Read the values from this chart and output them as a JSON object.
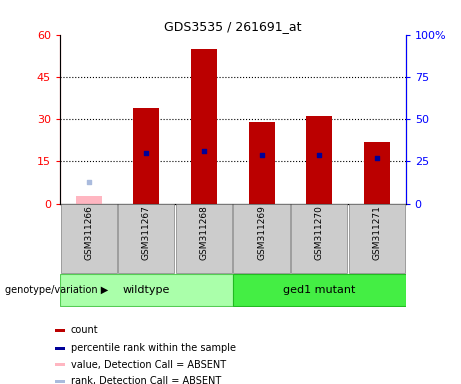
{
  "title": "GDS3535 / 261691_at",
  "samples": [
    "GSM311266",
    "GSM311267",
    "GSM311268",
    "GSM311269",
    "GSM311270",
    "GSM311271"
  ],
  "count_values": [
    null,
    34,
    55,
    29,
    31,
    22
  ],
  "count_absent": [
    2.5,
    null,
    null,
    null,
    null,
    null
  ],
  "percentile_values": [
    null,
    30,
    31,
    29,
    29,
    27
  ],
  "percentile_absent": [
    13,
    null,
    null,
    null,
    null,
    null
  ],
  "ylim_left": [
    0,
    60
  ],
  "ylim_right": [
    0,
    100
  ],
  "yticks_left": [
    0,
    15,
    30,
    45,
    60
  ],
  "yticks_right": [
    0,
    25,
    50,
    75,
    100
  ],
  "ytick_labels_left": [
    "0",
    "15",
    "30",
    "45",
    "60"
  ],
  "ytick_labels_right": [
    "0",
    "25",
    "50",
    "75",
    "100%"
  ],
  "bar_color_present": "#BB0000",
  "bar_color_absent": "#FFB6C1",
  "scatter_color_present": "#000099",
  "scatter_color_absent": "#AABBDD",
  "bar_width": 0.45,
  "group_label": "genotype/variation",
  "group_boxes": [
    {
      "xmin": -0.5,
      "xmax": 2.5,
      "label": "wildtype",
      "facecolor": "#AAFFAA",
      "edgecolor": "#55CC55"
    },
    {
      "xmin": 2.5,
      "xmax": 5.5,
      "label": "ged1 mutant",
      "facecolor": "#44EE44",
      "edgecolor": "#22BB22"
    }
  ],
  "legend_items": [
    {
      "color": "#BB0000",
      "label": "count"
    },
    {
      "color": "#000099",
      "label": "percentile rank within the sample"
    },
    {
      "color": "#FFB6C1",
      "label": "value, Detection Call = ABSENT"
    },
    {
      "color": "#AABBDD",
      "label": "rank, Detection Call = ABSENT"
    }
  ],
  "dotted_lines": [
    15,
    30,
    45
  ],
  "sample_bg_color": "#CCCCCC",
  "plot_bg_color": "#FFFFFF"
}
